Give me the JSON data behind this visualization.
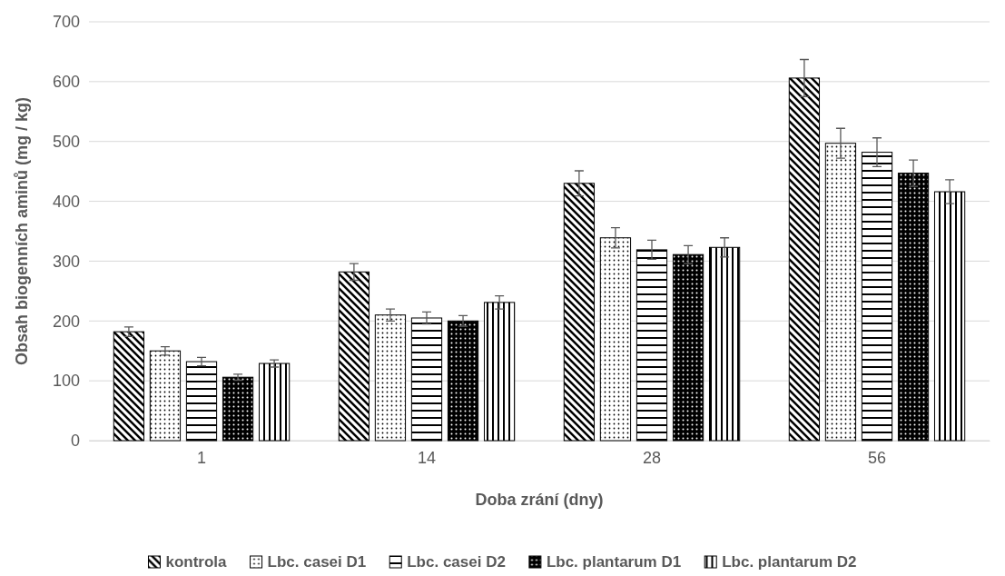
{
  "chart_data": {
    "type": "bar",
    "xlabel": "Doba zrání (dny)",
    "ylabel": "Obsah biogenních aminů (mg / kg)",
    "categories": [
      "1",
      "14",
      "28",
      "56"
    ],
    "ylim": [
      0,
      700
    ],
    "yticks": [
      0,
      100,
      200,
      300,
      400,
      500,
      600,
      700
    ],
    "grid": "y",
    "legend": "bottom",
    "series": [
      {
        "name": "kontrola",
        "color": "#000000",
        "values": [
          182,
          282,
          430,
          606
        ],
        "errors": [
          8,
          14,
          21,
          31
        ]
      },
      {
        "name": "Lbc. casei D1",
        "color": "#000000",
        "values": [
          150,
          210,
          339,
          497
        ],
        "errors": [
          7,
          10,
          17,
          25
        ]
      },
      {
        "name": "Lbc. casei D2",
        "color": "#000000",
        "values": [
          132,
          205,
          319,
          482
        ],
        "errors": [
          7,
          10,
          16,
          24
        ]
      },
      {
        "name": "Lbc. plantarum D1",
        "color": "#000000",
        "values": [
          106,
          200,
          311,
          447
        ],
        "errors": [
          5,
          9,
          15,
          22
        ]
      },
      {
        "name": "Lbc. plantarum D2",
        "color": "#000000",
        "values": [
          129,
          231,
          323,
          416
        ],
        "errors": [
          6,
          11,
          16,
          20
        ]
      }
    ]
  }
}
